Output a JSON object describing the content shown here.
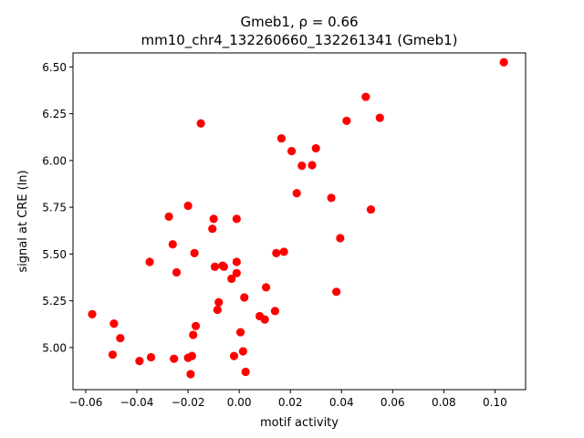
{
  "chart_data": {
    "type": "scatter",
    "title_line1": "Gmeb1, ρ = 0.66",
    "title_line2": "mm10_chr4_132260660_132261341 (Gmeb1)",
    "xlabel": "motif activity",
    "ylabel": "signal at CRE (ln)",
    "xlim": [
      -0.065,
      0.112
    ],
    "ylim": [
      4.775,
      6.575
    ],
    "x_ticks": [
      -0.06,
      -0.04,
      -0.02,
      0.0,
      0.02,
      0.04,
      0.06,
      0.08,
      0.1
    ],
    "x_tick_labels": [
      "−0.06",
      "−0.04",
      "−0.02",
      "0.00",
      "0.02",
      "0.04",
      "0.06",
      "0.08",
      "0.10"
    ],
    "y_ticks": [
      5.0,
      5.25,
      5.5,
      5.75,
      6.0,
      6.25,
      6.5
    ],
    "y_tick_labels": [
      "5.00",
      "5.25",
      "5.50",
      "5.75",
      "6.00",
      "6.25",
      "6.50"
    ],
    "grid": false,
    "legend": "none",
    "marker_color": "#ff0000",
    "points": [
      {
        "x": 0.1035,
        "y": 6.525
      },
      {
        "x": 0.0495,
        "y": 6.34
      },
      {
        "x": 0.055,
        "y": 6.228
      },
      {
        "x": 0.042,
        "y": 6.212
      },
      {
        "x": -0.015,
        "y": 6.198
      },
      {
        "x": 0.0165,
        "y": 6.118
      },
      {
        "x": 0.03,
        "y": 6.065
      },
      {
        "x": 0.0205,
        "y": 6.05
      },
      {
        "x": 0.0245,
        "y": 5.972
      },
      {
        "x": 0.0285,
        "y": 5.975
      },
      {
        "x": 0.0225,
        "y": 5.825
      },
      {
        "x": 0.036,
        "y": 5.8
      },
      {
        "x": -0.02,
        "y": 5.758
      },
      {
        "x": 0.0515,
        "y": 5.738
      },
      {
        "x": -0.0275,
        "y": 5.7
      },
      {
        "x": -0.01,
        "y": 5.688
      },
      {
        "x": -0.001,
        "y": 5.688
      },
      {
        "x": -0.0105,
        "y": 5.635
      },
      {
        "x": 0.0395,
        "y": 5.585
      },
      {
        "x": -0.026,
        "y": 5.552
      },
      {
        "x": -0.0175,
        "y": 5.505
      },
      {
        "x": 0.0145,
        "y": 5.505
      },
      {
        "x": 0.0175,
        "y": 5.512
      },
      {
        "x": -0.035,
        "y": 5.458
      },
      {
        "x": -0.001,
        "y": 5.458
      },
      {
        "x": -0.0095,
        "y": 5.432
      },
      {
        "x": -0.0065,
        "y": 5.438
      },
      {
        "x": -0.006,
        "y": 5.432
      },
      {
        "x": -0.0245,
        "y": 5.402
      },
      {
        "x": -0.001,
        "y": 5.398
      },
      {
        "x": -0.003,
        "y": 5.368
      },
      {
        "x": 0.0105,
        "y": 5.322
      },
      {
        "x": 0.038,
        "y": 5.298
      },
      {
        "x": 0.002,
        "y": 5.268
      },
      {
        "x": -0.008,
        "y": 5.242
      },
      {
        "x": -0.0085,
        "y": 5.202
      },
      {
        "x": 0.014,
        "y": 5.195
      },
      {
        "x": -0.0575,
        "y": 5.178
      },
      {
        "x": 0.008,
        "y": 5.168
      },
      {
        "x": 0.01,
        "y": 5.15
      },
      {
        "x": -0.049,
        "y": 5.128
      },
      {
        "x": -0.017,
        "y": 5.115
      },
      {
        "x": 0.0005,
        "y": 5.082
      },
      {
        "x": -0.018,
        "y": 5.068
      },
      {
        "x": -0.0465,
        "y": 5.05
      },
      {
        "x": 0.0015,
        "y": 4.98
      },
      {
        "x": -0.0495,
        "y": 4.962
      },
      {
        "x": -0.002,
        "y": 4.955
      },
      {
        "x": -0.0185,
        "y": 4.955
      },
      {
        "x": -0.0345,
        "y": 4.948
      },
      {
        "x": -0.02,
        "y": 4.945
      },
      {
        "x": -0.0255,
        "y": 4.94
      },
      {
        "x": -0.039,
        "y": 4.928
      },
      {
        "x": 0.0025,
        "y": 4.87
      },
      {
        "x": -0.019,
        "y": 4.858
      }
    ]
  }
}
